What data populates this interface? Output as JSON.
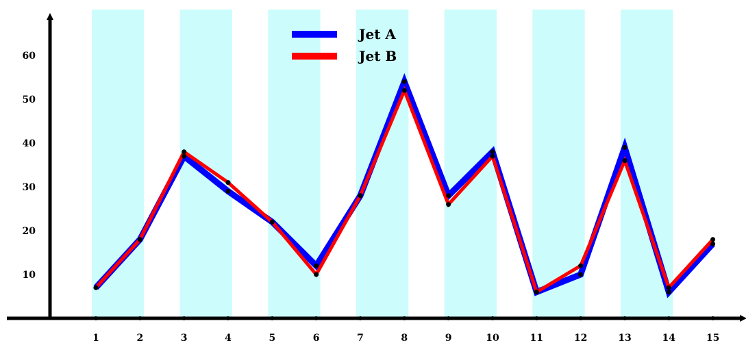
{
  "chart_data": {
    "type": "line",
    "title": "",
    "xlabel": "",
    "ylabel": "",
    "categories": [
      1,
      2,
      3,
      4,
      5,
      6,
      7,
      8,
      9,
      10,
      11,
      12,
      13,
      14,
      15
    ],
    "x_ticks": [
      "1",
      "2",
      "3",
      "4",
      "5",
      "6",
      "7",
      "8",
      "9",
      "10",
      "11",
      "12",
      "13",
      "14",
      "15"
    ],
    "y_ticks": [
      "10",
      "20",
      "30",
      "40",
      "50",
      "60"
    ],
    "ylim": [
      0,
      70
    ],
    "xlim": [
      0.0,
      16.2
    ],
    "grid": false,
    "legend": "top-center",
    "shaded_bands": [
      [
        1,
        2
      ],
      [
        3,
        4
      ],
      [
        5,
        6
      ],
      [
        7,
        8
      ],
      [
        9,
        10
      ],
      [
        11,
        12
      ],
      [
        13,
        14
      ]
    ],
    "band_color": "#ccfcfc",
    "series": [
      {
        "name": "Jet A",
        "color": "#0000ff",
        "values": [
          7,
          18,
          37,
          29,
          22,
          12,
          28,
          54,
          28,
          38,
          6,
          10,
          39,
          6,
          17
        ]
      },
      {
        "name": "Jet B",
        "color": "#ff0000",
        "values": [
          7,
          18,
          38,
          31,
          22,
          10,
          28,
          52,
          26,
          37,
          6,
          12,
          36,
          7,
          18
        ]
      }
    ]
  }
}
